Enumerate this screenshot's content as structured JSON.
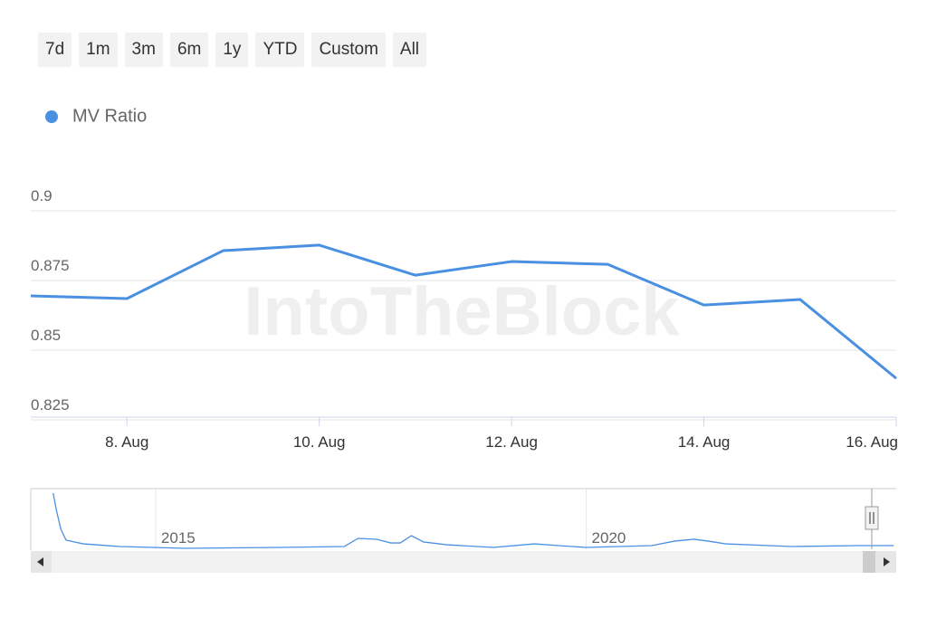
{
  "range_buttons": [
    "7d",
    "1m",
    "3m",
    "6m",
    "1y",
    "YTD",
    "Custom",
    "All"
  ],
  "watermark": "IntoTheBlock",
  "chart_data": {
    "type": "line",
    "categories": [
      null,
      "8. Aug",
      null,
      "10. Aug",
      null,
      "12. Aug",
      null,
      "14. Aug",
      null,
      "16. Aug"
    ],
    "series": [
      {
        "name": "MV Ratio",
        "color": "#4a90e2",
        "values": [
          0.8695,
          0.8685,
          0.8857,
          0.8877,
          0.8769,
          0.8818,
          0.8808,
          0.8662,
          0.8682,
          0.8399
        ]
      }
    ],
    "ylim": [
      0.825,
      0.9
    ],
    "yticks": [
      0.825,
      0.85,
      0.875,
      0.9
    ],
    "grid": true,
    "navigator": {
      "x": [
        2013.81,
        2013.85,
        2013.9,
        2013.96,
        2014.16,
        2014.59,
        2015.35,
        2016.43,
        2017.19,
        2017.35,
        2017.57,
        2017.73,
        2017.84,
        2017.97,
        2018.11,
        2018.38,
        2018.92,
        2019.4,
        2019.68,
        2020.0,
        2020.76,
        2021.03,
        2021.25,
        2021.41,
        2021.62,
        2022.38,
        2023.14,
        2023.57
      ],
      "values": [
        5.0,
        3.39,
        1.77,
        0.81,
        0.48,
        0.24,
        0.08,
        0.16,
        0.24,
        0.97,
        0.89,
        0.56,
        0.56,
        1.21,
        0.65,
        0.4,
        0.16,
        0.48,
        0.32,
        0.16,
        0.32,
        0.73,
        0.89,
        0.73,
        0.48,
        0.24,
        0.32,
        0.32
      ],
      "xlim": [
        2013.55,
        2023.6
      ],
      "ylim": [
        0,
        5
      ],
      "xticks": [
        {
          "value": 2015,
          "label": "2015"
        },
        {
          "value": 2020,
          "label": "2020"
        }
      ]
    }
  }
}
